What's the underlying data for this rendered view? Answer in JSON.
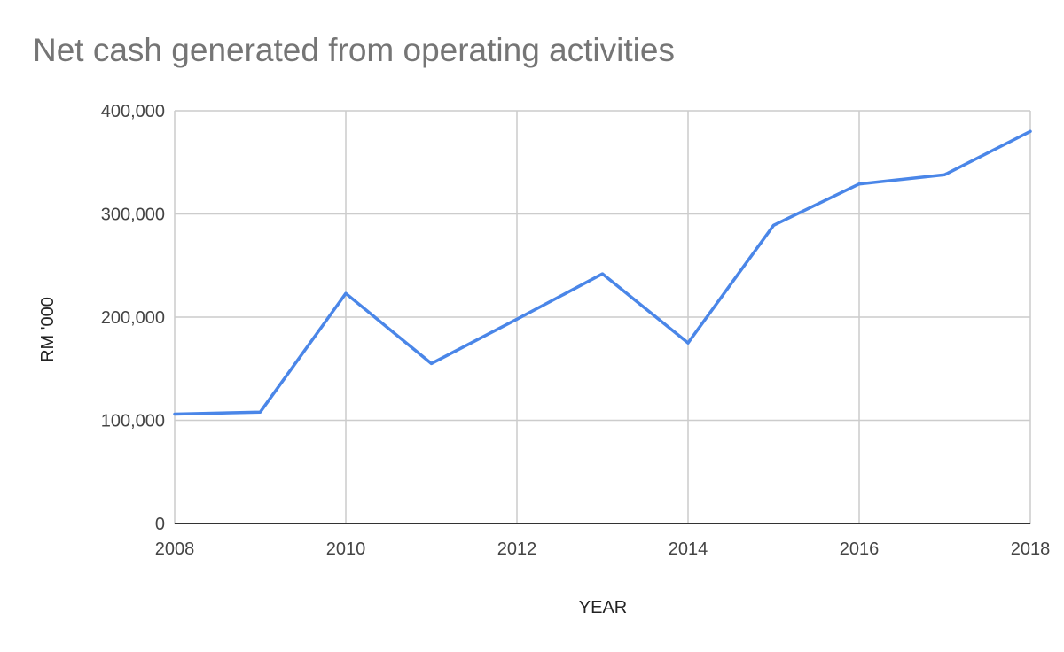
{
  "chart_data": {
    "type": "line",
    "title": "Net cash generated from operating activities",
    "xlabel": "YEAR",
    "ylabel": "RM '000",
    "xlim": [
      2008,
      2018
    ],
    "ylim": [
      0,
      400000
    ],
    "x_ticks": [
      2008,
      2010,
      2012,
      2014,
      2016,
      2018
    ],
    "y_ticks": [
      0,
      100000,
      200000,
      300000,
      400000
    ],
    "y_tick_labels": [
      "0",
      "100,000",
      "200,000",
      "300,000",
      "400,000"
    ],
    "x_tick_labels": [
      "2008",
      "2010",
      "2012",
      "2014",
      "2016",
      "2018"
    ],
    "grid": true,
    "legend": "none",
    "line_color": "#4a86e8",
    "grid_color": "#cccccc",
    "series": [
      {
        "x": [
          2008,
          2009,
          2010,
          2011,
          2012,
          2013,
          2014,
          2015,
          2016,
          2017,
          2018
        ],
        "values": [
          106000,
          108000,
          223000,
          155000,
          198000,
          242000,
          175000,
          289000,
          329000,
          338000,
          380000
        ]
      }
    ]
  }
}
